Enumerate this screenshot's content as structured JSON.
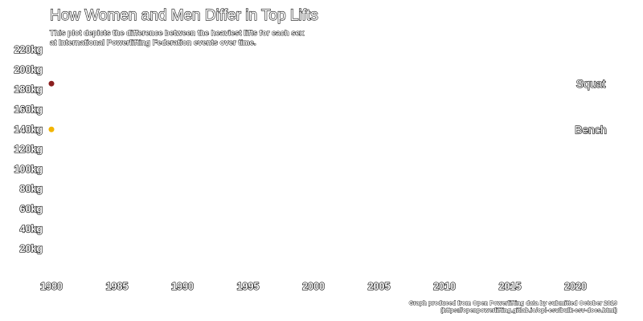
{
  "chart_data": {
    "type": "scatter",
    "title": "How Women and Men Differ in Top Lifts",
    "subtitle": [
      "This plot depicts the difference between the heaviest lifts for each sex",
      "at International Powerlifting Federation events over time."
    ],
    "caption": [
      "Graph produced from Open Powerlifting data by submitted October 2019",
      "(https://openpowerlifting.gitlab.io/opl-csv/bulk-csv-docs.html)"
    ],
    "x": {
      "ticks": [
        1980,
        1985,
        1990,
        1995,
        2000,
        2005,
        2010,
        2015,
        2020
      ],
      "tick_labels": [
        "1980",
        "1985",
        "1990",
        "1995",
        "2000",
        "2005",
        "2010",
        "2015",
        "2020"
      ],
      "range": [
        1980,
        2020
      ]
    },
    "y": {
      "ticks": [
        20,
        40,
        60,
        80,
        100,
        120,
        140,
        160,
        180,
        200,
        220
      ],
      "tick_labels": [
        "20kg",
        "40kg",
        "60kg",
        "80kg",
        "100kg",
        "120kg",
        "140kg",
        "160kg",
        "180kg",
        "200kg",
        "220kg"
      ],
      "range": [
        0,
        220
      ]
    },
    "series": [
      {
        "name": "Squat",
        "color": "#8b1e1e",
        "points": [
          {
            "x": 1980,
            "y": 186
          }
        ]
      },
      {
        "name": "Bench",
        "color": "#f2b400",
        "points": [
          {
            "x": 1980,
            "y": 140
          }
        ]
      }
    ],
    "grid": false,
    "legend": "direct labels at right"
  }
}
